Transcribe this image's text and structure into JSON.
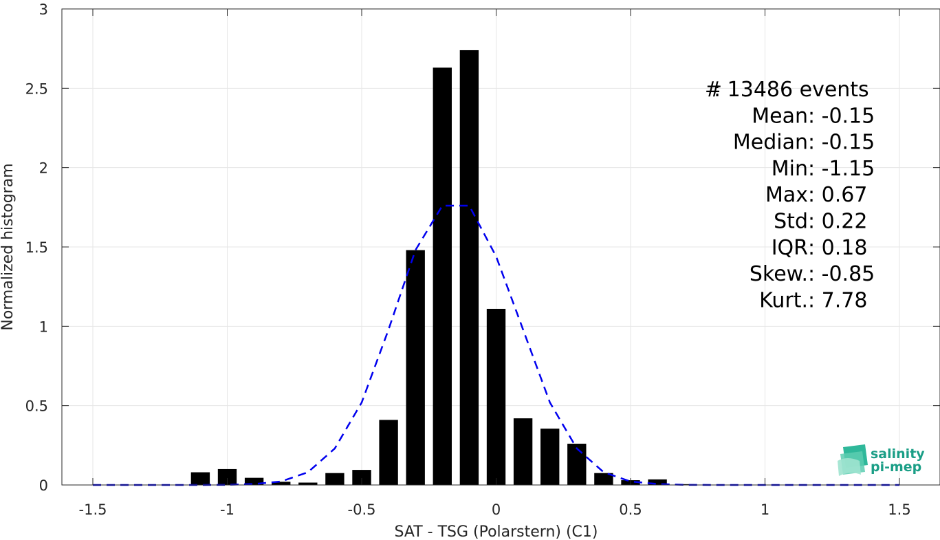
{
  "chart_data": {
    "type": "bar",
    "xlabel": "SAT - TSG (Polarstern) (C1)",
    "ylabel": "Normalized histogram",
    "xlim": [
      -1.5,
      1.5
    ],
    "ylim": [
      0,
      3
    ],
    "grid": true,
    "x_ticks": [
      "-1.5",
      "-1",
      "-0.5",
      "0",
      "0.5",
      "1",
      "1.5"
    ],
    "y_ticks": [
      "0",
      "0.5",
      "1",
      "1.5",
      "2",
      "2.5",
      "3"
    ],
    "bar_width": 0.07,
    "bar_color": "#000000",
    "x": [
      -1.1,
      -1.0,
      -0.9,
      -0.8,
      -0.7,
      -0.6,
      -0.5,
      -0.4,
      -0.3,
      -0.2,
      -0.1,
      0.0,
      0.1,
      0.2,
      0.3,
      0.4,
      0.5,
      0.6,
      0.7
    ],
    "values": [
      0.08,
      0.1,
      0.045,
      0.02,
      0.015,
      0.075,
      0.095,
      0.41,
      1.48,
      2.63,
      2.74,
      1.11,
      0.42,
      0.355,
      0.26,
      0.075,
      0.03,
      0.035,
      0.005
    ],
    "series": [
      {
        "type": "line",
        "style": "dashed",
        "color": "#0000ee",
        "x": [
          -1.5,
          -1.4,
          -1.3,
          -1.2,
          -1.1,
          -1.0,
          -0.9,
          -0.8,
          -0.7,
          -0.6,
          -0.5,
          -0.4,
          -0.3,
          -0.2,
          -0.1,
          0.0,
          0.1,
          0.2,
          0.3,
          0.4,
          0.5,
          0.6,
          0.7,
          0.8,
          0.9,
          1.0,
          1.1,
          1.2,
          1.3,
          1.4,
          1.5
        ],
        "y": [
          0,
          0,
          0,
          0,
          0,
          0.001,
          0.006,
          0.022,
          0.08,
          0.23,
          0.52,
          0.98,
          1.48,
          1.76,
          1.76,
          1.44,
          0.98,
          0.52,
          0.23,
          0.08,
          0.022,
          0.006,
          0.001,
          0,
          0,
          0,
          0,
          0,
          0,
          0,
          0
        ]
      }
    ],
    "stats": [
      {
        "label": "#  ",
        "value": ": 13486 events"
      },
      {
        "label": "Mean ",
        "value": ": -0.15"
      },
      {
        "label": "Median ",
        "value": ": -0.15"
      },
      {
        "label": "Min ",
        "value": ": -1.15"
      },
      {
        "label": "Max ",
        "value": ": 0.67"
      },
      {
        "label": "Std ",
        "value": ": 0.22"
      },
      {
        "label": "IQR ",
        "value": ": 0.18"
      },
      {
        "label": "Skew. ",
        "value": ": -0.85"
      },
      {
        "label": "Kurt. ",
        "value": ": 7.78"
      }
    ]
  },
  "logo": {
    "line1": "salinity",
    "line2": "pi-mep"
  }
}
